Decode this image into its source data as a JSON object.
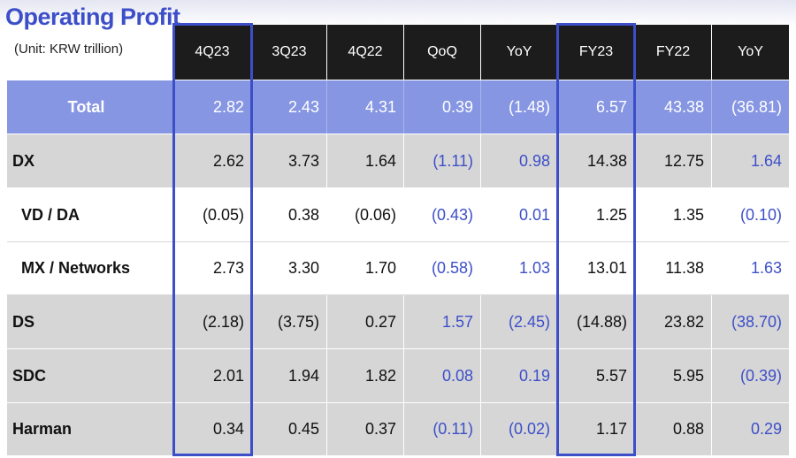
{
  "title": "Operating Profit",
  "unit": "(Unit: KRW trillion)",
  "columns": [
    "4Q23",
    "3Q23",
    "4Q22",
    "QoQ",
    "YoY",
    "FY23",
    "FY22",
    "YoY"
  ],
  "rows": [
    {
      "label": "Total",
      "values": [
        "2.82",
        "2.43",
        "4.31",
        "0.39",
        "(1.48)",
        "6.57",
        "43.38",
        "(36.81)"
      ]
    },
    {
      "label": "DX",
      "values": [
        "2.62",
        "3.73",
        "1.64",
        "(1.11)",
        "0.98",
        "14.38",
        "12.75",
        "1.64"
      ]
    },
    {
      "label": "VD / DA",
      "values": [
        "(0.05)",
        "0.38",
        "(0.06)",
        "(0.43)",
        "0.01",
        "1.25",
        "1.35",
        "(0.10)"
      ]
    },
    {
      "label": "MX / Networks",
      "values": [
        "2.73",
        "3.30",
        "1.70",
        "(0.58)",
        "1.03",
        "13.01",
        "11.38",
        "1.63"
      ]
    },
    {
      "label": "DS",
      "values": [
        "(2.18)",
        "(3.75)",
        "0.27",
        "1.57",
        "(2.45)",
        "(14.88)",
        "23.82",
        "(38.70)"
      ]
    },
    {
      "label": "SDC",
      "values": [
        "2.01",
        "1.94",
        "1.82",
        "0.08",
        "0.19",
        "5.57",
        "5.95",
        "(0.39)"
      ]
    },
    {
      "label": "Harman",
      "values": [
        "0.34",
        "0.45",
        "0.37",
        "(0.11)",
        "(0.02)",
        "1.17",
        "0.88",
        "0.29"
      ]
    }
  ],
  "highlighted_columns": [
    "4Q23",
    "FY23"
  ],
  "colors": {
    "accent": "#3d4fc8",
    "header_bg": "#1c1c1c",
    "total_row_bg": "#8696e2",
    "gray_row_bg": "#d6d6d6"
  }
}
